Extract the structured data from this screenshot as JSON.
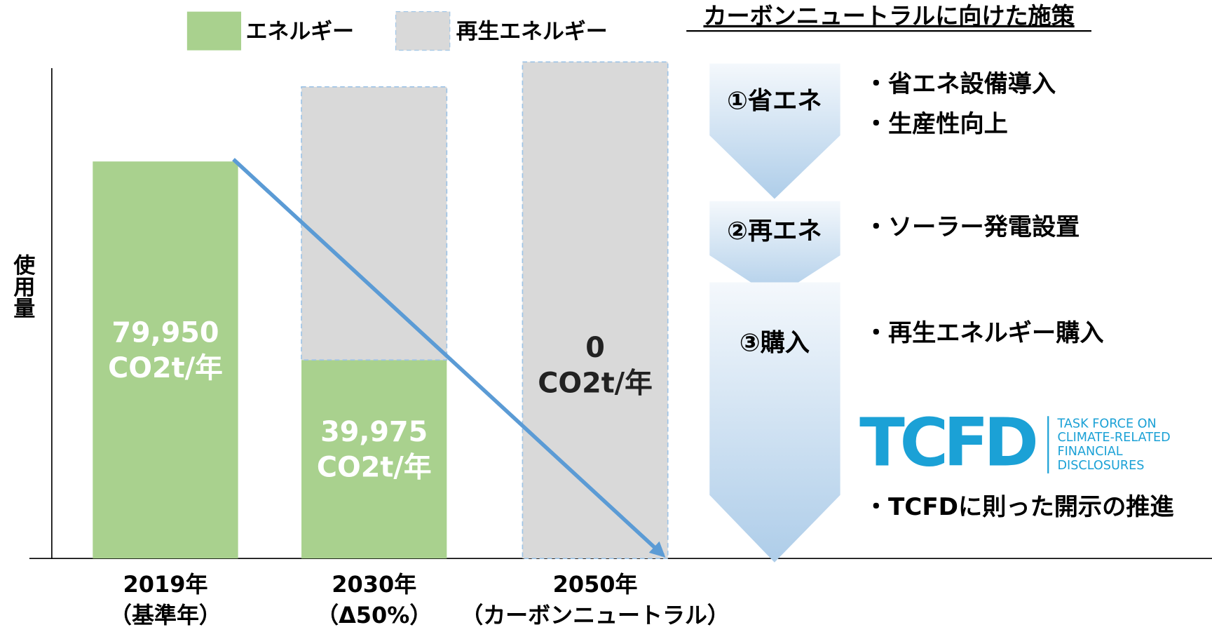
{
  "chart_data": {
    "type": "bar",
    "stacked": true,
    "categories": [
      "2019年",
      "2030年",
      "2050年"
    ],
    "category_notes": [
      "（基準年）",
      "（Δ50%）",
      "（カーボンニュートラル）"
    ],
    "y_label": "使用量",
    "series": [
      {
        "name": "エネルギー",
        "color": "#a9d18e",
        "values": [
          79950,
          39975,
          0
        ],
        "value_labels": [
          "79,950",
          "39,975",
          "0"
        ]
      },
      {
        "name": "再生エネルギー",
        "color": "#d9d9d9",
        "values": [
          0,
          55000,
          100000
        ]
      }
    ],
    "unit_label": "CO2t/年"
  },
  "panel": {
    "title": "カーボンニュートラルに向けた施策",
    "steps": [
      {
        "label": "①省エネ",
        "items": [
          "・省エネ設備導入",
          "・生産性向上"
        ]
      },
      {
        "label": "②再エネ",
        "items": [
          "・ソーラー発電設置"
        ]
      },
      {
        "label": "③購入",
        "items": [
          "・再生エネルギー購入",
          "・TCFDに則った開示の推進"
        ]
      }
    ],
    "logo": {
      "text": "TCFD",
      "lines": [
        "TASK FORCE ON",
        "CLIMATE-RELATED",
        "FINANCIAL",
        "DISCLOSURES"
      ]
    }
  }
}
